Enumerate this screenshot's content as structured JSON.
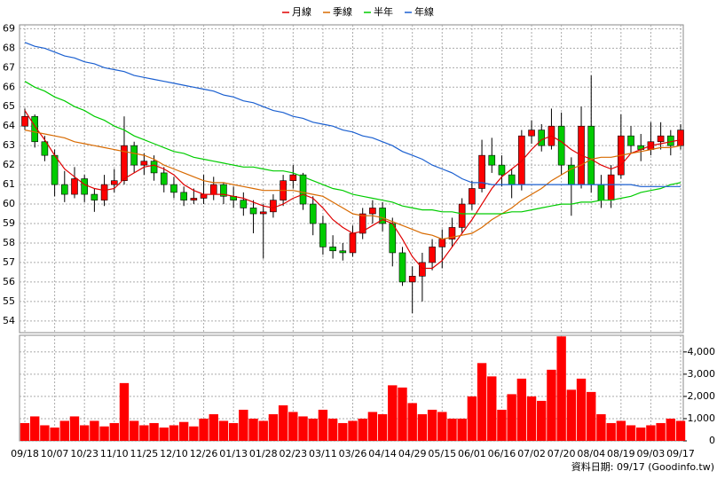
{
  "chart_data": {
    "type": "candlestick",
    "categories": [
      "09/18",
      null,
      null,
      "10/07",
      null,
      null,
      "10/23",
      null,
      null,
      "11/10",
      null,
      null,
      "11/25",
      null,
      null,
      "12/10",
      null,
      null,
      "12/26",
      null,
      null,
      "01/13",
      null,
      null,
      "01/28",
      null,
      null,
      "02/23",
      null,
      null,
      "03/11",
      null,
      null,
      "03/26",
      null,
      null,
      "04/14",
      null,
      null,
      "04/29",
      null,
      null,
      "05/15",
      null,
      null,
      "06/01",
      null,
      null,
      "06/16",
      null,
      null,
      "07/02",
      null,
      null,
      "07/20",
      null,
      null,
      "08/04",
      null,
      null,
      "08/19",
      null,
      null,
      "09/03",
      null,
      null,
      "09/17"
    ],
    "open": [
      64.0,
      64.5,
      63.2,
      62.5,
      61.0,
      60.5,
      61.3,
      60.5,
      60.2,
      61.0,
      61.2,
      63.0,
      62.0,
      62.2,
      61.6,
      61.0,
      60.6,
      60.2,
      60.3,
      60.5,
      61.0,
      60.4,
      60.2,
      59.8,
      59.5,
      59.6,
      60.2,
      61.2,
      61.5,
      60.0,
      59.0,
      57.8,
      57.6,
      57.5,
      58.5,
      59.5,
      59.8,
      59.0,
      57.5,
      56.0,
      56.3,
      57.0,
      57.8,
      58.2,
      58.8,
      60.0,
      60.8,
      62.5,
      62.0,
      61.5,
      61.0,
      63.5,
      63.8,
      63.0,
      64.0,
      62.0,
      61.0,
      64.0,
      61.0,
      60.2,
      61.5,
      63.5,
      63.0,
      62.8,
      63.2,
      63.5,
      63.0
    ],
    "high": [
      64.9,
      64.6,
      63.5,
      62.8,
      61.7,
      61.9,
      61.5,
      60.8,
      61.5,
      61.8,
      64.5,
      63.2,
      62.6,
      62.5,
      61.9,
      61.4,
      60.9,
      60.8,
      61.5,
      61.4,
      61.1,
      60.9,
      60.6,
      60.2,
      60.0,
      60.5,
      61.5,
      62.0,
      61.6,
      60.4,
      59.4,
      58.4,
      58.0,
      58.9,
      59.8,
      60.2,
      60.1,
      59.3,
      57.8,
      56.8,
      57.5,
      58.2,
      58.7,
      59.3,
      60.3,
      61.2,
      63.3,
      63.4,
      62.5,
      61.8,
      63.8,
      64.3,
      64.1,
      64.9,
      64.7,
      62.4,
      65.0,
      66.6,
      61.5,
      62.0,
      64.6,
      64.0,
      63.6,
      64.2,
      64.2,
      63.8,
      64.1
    ],
    "low": [
      63.8,
      62.9,
      62.2,
      60.4,
      60.1,
      60.3,
      60.1,
      59.6,
      59.9,
      60.6,
      61.0,
      61.6,
      61.5,
      61.2,
      60.6,
      60.3,
      59.9,
      60.0,
      60.0,
      60.2,
      60.0,
      59.8,
      59.4,
      58.5,
      57.2,
      59.3,
      59.9,
      60.8,
      59.7,
      58.4,
      57.4,
      57.2,
      57.1,
      57.3,
      58.2,
      59.0,
      58.6,
      56.8,
      55.8,
      54.4,
      55.0,
      56.6,
      56.7,
      57.8,
      58.5,
      59.7,
      60.6,
      61.6,
      60.9,
      60.3,
      60.7,
      63.1,
      62.7,
      62.8,
      61.5,
      59.4,
      60.8,
      60.6,
      59.8,
      59.8,
      61.3,
      62.6,
      62.2,
      62.5,
      62.8,
      62.5,
      62.8
    ],
    "close": [
      64.5,
      63.2,
      62.5,
      61.0,
      60.5,
      61.3,
      60.5,
      60.2,
      61.0,
      61.2,
      63.0,
      62.0,
      62.2,
      61.6,
      61.0,
      60.6,
      60.2,
      60.3,
      60.5,
      61.0,
      60.4,
      60.2,
      59.8,
      59.5,
      59.6,
      60.2,
      61.2,
      61.5,
      60.0,
      59.0,
      57.8,
      57.6,
      57.5,
      58.5,
      59.5,
      59.8,
      59.0,
      57.5,
      56.0,
      56.3,
      57.0,
      57.8,
      58.2,
      58.8,
      60.0,
      60.8,
      62.5,
      62.0,
      61.5,
      61.0,
      63.5,
      63.8,
      63.0,
      64.0,
      62.0,
      61.0,
      64.0,
      61.0,
      60.2,
      61.5,
      63.5,
      63.0,
      62.8,
      63.2,
      63.5,
      63.0,
      63.8
    ],
    "up_color": "#ff0000",
    "down_color": "#00cc00",
    "ylim": [
      53.4,
      69.2
    ],
    "yticks": [
      54,
      55,
      56,
      57,
      58,
      59,
      60,
      61,
      62,
      63,
      64,
      65,
      66,
      67,
      68,
      69
    ],
    "grid": true,
    "lines": [
      {
        "name": "月線",
        "color": "#e00000",
        "values": [
          64.8,
          64.0,
          63.3,
          62.5,
          61.8,
          61.4,
          61.0,
          60.8,
          60.7,
          60.8,
          61.3,
          61.6,
          61.9,
          62.0,
          61.8,
          61.5,
          61.0,
          60.7,
          60.5,
          60.5,
          60.5,
          60.4,
          60.3,
          60.1,
          59.9,
          59.8,
          60.0,
          60.3,
          60.5,
          60.3,
          59.8,
          59.2,
          58.8,
          58.5,
          58.6,
          58.9,
          59.2,
          59.0,
          58.2,
          57.3,
          56.7,
          56.7,
          57.1,
          57.8,
          58.5,
          59.2,
          60.0,
          60.8,
          61.4,
          61.8,
          62.2,
          62.8,
          63.3,
          63.5,
          63.2,
          62.8,
          62.5,
          62.3,
          62.0,
          61.8,
          62.0,
          62.6,
          62.8,
          63.0,
          63.1,
          63.2,
          63.3
        ]
      },
      {
        "name": "季線",
        "color": "#d86a00",
        "values": [
          63.8,
          63.7,
          63.6,
          63.5,
          63.4,
          63.2,
          63.1,
          63.0,
          62.9,
          62.8,
          62.7,
          62.6,
          62.5,
          62.3,
          62.0,
          61.8,
          61.6,
          61.4,
          61.2,
          61.1,
          61.1,
          61.0,
          60.9,
          60.8,
          60.7,
          60.7,
          60.7,
          60.7,
          60.6,
          60.5,
          60.4,
          60.1,
          59.8,
          59.5,
          59.4,
          59.4,
          59.3,
          59.1,
          58.9,
          58.7,
          58.5,
          58.4,
          58.2,
          58.3,
          58.4,
          58.5,
          58.8,
          59.2,
          59.5,
          59.8,
          60.2,
          60.5,
          60.8,
          61.2,
          61.5,
          61.8,
          62.0,
          62.3,
          62.4,
          62.4,
          62.5,
          62.6,
          62.7,
          62.8,
          62.9,
          62.9,
          63.0
        ]
      },
      {
        "name": "半年",
        "color": "#00cc00",
        "values": [
          66.3,
          66.0,
          65.8,
          65.5,
          65.3,
          65.0,
          64.8,
          64.5,
          64.3,
          64.0,
          63.8,
          63.5,
          63.3,
          63.1,
          62.9,
          62.7,
          62.6,
          62.4,
          62.3,
          62.2,
          62.1,
          62.0,
          61.9,
          61.9,
          61.8,
          61.7,
          61.7,
          61.6,
          61.4,
          61.2,
          61.0,
          60.8,
          60.7,
          60.5,
          60.4,
          60.3,
          60.2,
          60.1,
          59.9,
          59.8,
          59.7,
          59.7,
          59.6,
          59.6,
          59.5,
          59.5,
          59.5,
          59.5,
          59.5,
          59.6,
          59.6,
          59.7,
          59.8,
          59.9,
          60.0,
          60.0,
          60.1,
          60.1,
          60.2,
          60.2,
          60.3,
          60.4,
          60.6,
          60.7,
          60.8,
          61.0,
          61.1
        ]
      },
      {
        "name": "年線",
        "color": "#1a5fd0",
        "values": [
          68.3,
          68.1,
          68.0,
          67.8,
          67.6,
          67.5,
          67.3,
          67.2,
          67.0,
          66.9,
          66.8,
          66.6,
          66.5,
          66.4,
          66.3,
          66.2,
          66.1,
          66.0,
          65.9,
          65.8,
          65.6,
          65.5,
          65.3,
          65.2,
          65.0,
          64.8,
          64.7,
          64.5,
          64.4,
          64.2,
          64.1,
          64.0,
          63.8,
          63.7,
          63.5,
          63.4,
          63.2,
          63.0,
          62.7,
          62.5,
          62.3,
          62.0,
          61.8,
          61.6,
          61.3,
          61.1,
          61.1,
          61.0,
          61.0,
          61.0,
          61.0,
          61.0,
          61.0,
          61.0,
          61.0,
          61.0,
          61.0,
          61.0,
          61.0,
          61.0,
          61.0,
          61.0,
          60.9,
          60.9,
          60.9,
          60.9,
          60.9
        ]
      }
    ],
    "volume": {
      "color": "#ff0000",
      "values": [
        800,
        1100,
        700,
        600,
        900,
        1100,
        700,
        900,
        650,
        800,
        2600,
        900,
        700,
        800,
        600,
        700,
        850,
        650,
        1000,
        1200,
        900,
        800,
        1400,
        1000,
        900,
        1200,
        1600,
        1300,
        1100,
        1000,
        1400,
        1000,
        800,
        900,
        1000,
        1300,
        1200,
        2500,
        2400,
        1700,
        1200,
        1400,
        1300,
        1000,
        1000,
        2000,
        3500,
        2900,
        1400,
        2100,
        2800,
        2000,
        1800,
        3200,
        4700,
        2300,
        2800,
        2200,
        1200,
        800,
        900,
        700,
        600,
        700,
        800,
        1000,
        900
      ],
      "ylim": [
        0,
        4750
      ],
      "yticks": [
        0,
        {
          "value": 1000,
          "label": "1,000"
        },
        {
          "value": 2000,
          "label": "2,000"
        },
        {
          "value": 3000,
          "label": "3,000"
        },
        {
          "value": 4000,
          "label": "4,000"
        }
      ]
    },
    "source": "資料日期: 09/17 (Goodinfo.tw)"
  }
}
